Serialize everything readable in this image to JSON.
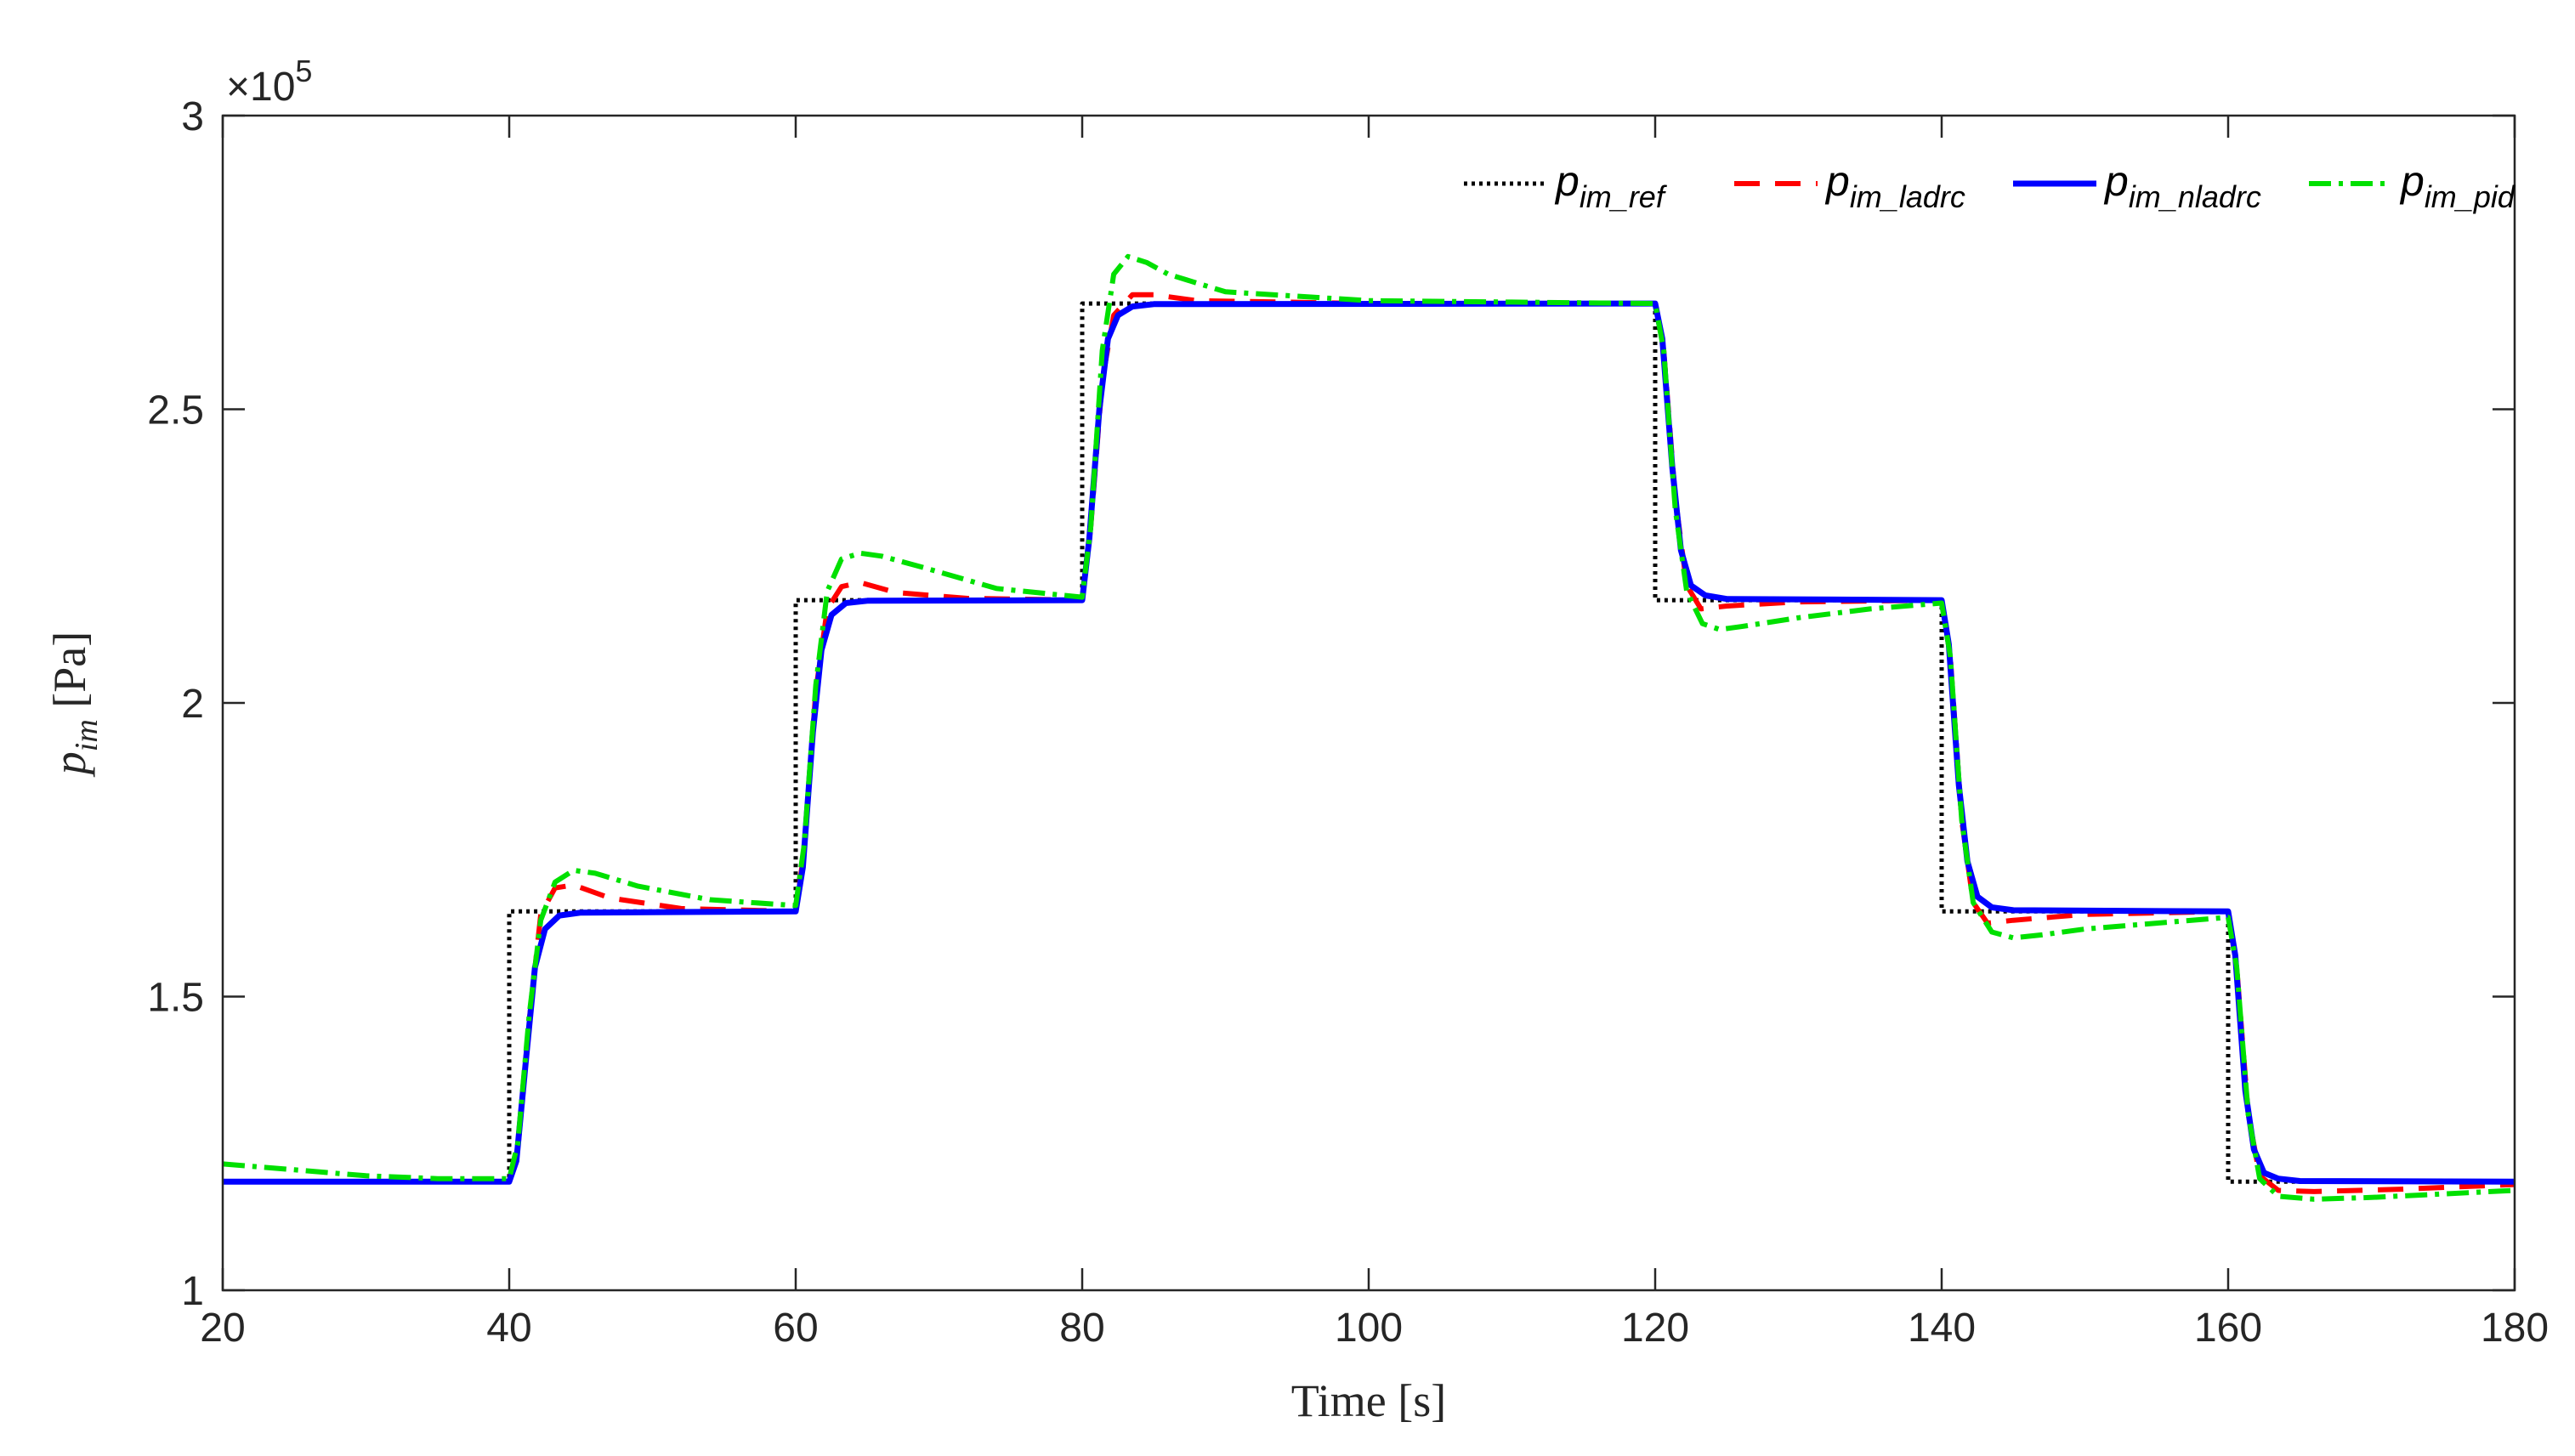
{
  "chart_data": {
    "type": "line",
    "xlabel": "Time [s]",
    "ylabel": {
      "main": "p",
      "sub": "im",
      "unit": " [Pa]"
    },
    "xlim": [
      20,
      180
    ],
    "ylim": [
      1.0,
      3.0
    ],
    "y_multiplier_label": "×10",
    "y_multiplier_exp": "5",
    "xticks": [
      20,
      40,
      60,
      80,
      100,
      120,
      140,
      160,
      180
    ],
    "yticks": [
      1,
      1.5,
      2,
      2.5,
      3
    ],
    "ytick_labels": [
      "1",
      "1.5",
      "2",
      "2.5",
      "3"
    ],
    "grid": false,
    "legend_position": "top-right",
    "legend": [
      {
        "main": "p",
        "sub": "im_ref"
      },
      {
        "main": "p",
        "sub": "im_ladrc"
      },
      {
        "main": "p",
        "sub": "im_nladrc"
      },
      {
        "main": "p",
        "sub": "im_pid"
      }
    ],
    "series": [
      {
        "legend_index": 0,
        "color": "#000000",
        "dash": "4 5",
        "width": 5,
        "points": [
          [
            20,
            1.185
          ],
          [
            40,
            1.185
          ],
          [
            40,
            1.645
          ],
          [
            60,
            1.645
          ],
          [
            60,
            2.175
          ],
          [
            80,
            2.175
          ],
          [
            80,
            2.68
          ],
          [
            120,
            2.68
          ],
          [
            120,
            2.175
          ],
          [
            140,
            2.175
          ],
          [
            140,
            1.645
          ],
          [
            160,
            1.645
          ],
          [
            160,
            1.185
          ],
          [
            180,
            1.185
          ]
        ]
      },
      {
        "legend_index": 1,
        "color": "#ff0000",
        "dash": "30 18",
        "width": 6,
        "points": [
          [
            20,
            1.185
          ],
          [
            40,
            1.185
          ],
          [
            40.6,
            1.24
          ],
          [
            41.4,
            1.46
          ],
          [
            42.2,
            1.64
          ],
          [
            43.2,
            1.685
          ],
          [
            44.5,
            1.69
          ],
          [
            47,
            1.668
          ],
          [
            52,
            1.65
          ],
          [
            60,
            1.645
          ],
          [
            60.6,
            1.75
          ],
          [
            61.4,
            2.02
          ],
          [
            62.2,
            2.16
          ],
          [
            63.2,
            2.198
          ],
          [
            64.5,
            2.205
          ],
          [
            67,
            2.188
          ],
          [
            72,
            2.178
          ],
          [
            80,
            2.175
          ],
          [
            80.6,
            2.3
          ],
          [
            81.4,
            2.55
          ],
          [
            82.2,
            2.66
          ],
          [
            83.5,
            2.695
          ],
          [
            85,
            2.695
          ],
          [
            88,
            2.685
          ],
          [
            100,
            2.68
          ],
          [
            120,
            2.68
          ],
          [
            120.6,
            2.6
          ],
          [
            121.4,
            2.35
          ],
          [
            122.2,
            2.2
          ],
          [
            123.2,
            2.16
          ],
          [
            125,
            2.165
          ],
          [
            130,
            2.172
          ],
          [
            140,
            2.175
          ],
          [
            140.6,
            2.08
          ],
          [
            141.4,
            1.8
          ],
          [
            142.2,
            1.66
          ],
          [
            143.2,
            1.625
          ],
          [
            145,
            1.63
          ],
          [
            150,
            1.64
          ],
          [
            160,
            1.645
          ],
          [
            160.6,
            1.55
          ],
          [
            161.4,
            1.3
          ],
          [
            162.2,
            1.195
          ],
          [
            163.5,
            1.17
          ],
          [
            166,
            1.168
          ],
          [
            172,
            1.172
          ],
          [
            180,
            1.18
          ]
        ]
      },
      {
        "legend_index": 2,
        "color": "#0000ff",
        "dash": "",
        "width": 7,
        "points": [
          [
            20,
            1.185
          ],
          [
            40,
            1.185
          ],
          [
            40.5,
            1.22
          ],
          [
            41.2,
            1.4
          ],
          [
            41.8,
            1.55
          ],
          [
            42.5,
            1.615
          ],
          [
            43.5,
            1.638
          ],
          [
            45,
            1.643
          ],
          [
            60,
            1.645
          ],
          [
            60.5,
            1.72
          ],
          [
            61.2,
            1.95
          ],
          [
            61.8,
            2.09
          ],
          [
            62.5,
            2.15
          ],
          [
            63.5,
            2.17
          ],
          [
            65,
            2.174
          ],
          [
            80,
            2.175
          ],
          [
            80.5,
            2.28
          ],
          [
            81.2,
            2.5
          ],
          [
            81.8,
            2.62
          ],
          [
            82.5,
            2.66
          ],
          [
            83.5,
            2.675
          ],
          [
            85,
            2.679
          ],
          [
            120,
            2.68
          ],
          [
            120.5,
            2.62
          ],
          [
            121.2,
            2.4
          ],
          [
            121.8,
            2.26
          ],
          [
            122.5,
            2.2
          ],
          [
            123.5,
            2.183
          ],
          [
            125,
            2.177
          ],
          [
            140,
            2.175
          ],
          [
            140.5,
            2.1
          ],
          [
            141.2,
            1.86
          ],
          [
            141.8,
            1.73
          ],
          [
            142.5,
            1.67
          ],
          [
            143.5,
            1.652
          ],
          [
            145,
            1.647
          ],
          [
            160,
            1.645
          ],
          [
            160.5,
            1.57
          ],
          [
            161.2,
            1.34
          ],
          [
            161.8,
            1.24
          ],
          [
            162.5,
            1.2
          ],
          [
            163.5,
            1.19
          ],
          [
            165,
            1.186
          ],
          [
            180,
            1.185
          ]
        ]
      },
      {
        "legend_index": 3,
        "color": "#00e000",
        "dash": "26 9 5 9",
        "width": 6,
        "points": [
          [
            20,
            1.215
          ],
          [
            25,
            1.205
          ],
          [
            30,
            1.195
          ],
          [
            35,
            1.19
          ],
          [
            40,
            1.19
          ],
          [
            40.6,
            1.25
          ],
          [
            41.4,
            1.47
          ],
          [
            42.2,
            1.63
          ],
          [
            43.2,
            1.695
          ],
          [
            44.5,
            1.715
          ],
          [
            46,
            1.71
          ],
          [
            49,
            1.688
          ],
          [
            54,
            1.665
          ],
          [
            60,
            1.655
          ],
          [
            60.6,
            1.76
          ],
          [
            61.4,
            2.03
          ],
          [
            62.2,
            2.19
          ],
          [
            63.2,
            2.245
          ],
          [
            64.5,
            2.255
          ],
          [
            66,
            2.25
          ],
          [
            69,
            2.23
          ],
          [
            74,
            2.195
          ],
          [
            80,
            2.18
          ],
          [
            80.6,
            2.3
          ],
          [
            81.4,
            2.6
          ],
          [
            82.2,
            2.73
          ],
          [
            83.2,
            2.76
          ],
          [
            84.5,
            2.75
          ],
          [
            86,
            2.73
          ],
          [
            90,
            2.7
          ],
          [
            100,
            2.685
          ],
          [
            120,
            2.68
          ],
          [
            120.6,
            2.6
          ],
          [
            121.4,
            2.33
          ],
          [
            122.2,
            2.19
          ],
          [
            123.3,
            2.135
          ],
          [
            124.5,
            2.125
          ],
          [
            126,
            2.13
          ],
          [
            130,
            2.145
          ],
          [
            135,
            2.16
          ],
          [
            140,
            2.17
          ],
          [
            140.6,
            2.08
          ],
          [
            141.4,
            1.8
          ],
          [
            142.2,
            1.66
          ],
          [
            143.5,
            1.61
          ],
          [
            145,
            1.6
          ],
          [
            147,
            1.605
          ],
          [
            150,
            1.615
          ],
          [
            155,
            1.625
          ],
          [
            160,
            1.635
          ],
          [
            160.6,
            1.55
          ],
          [
            161.4,
            1.3
          ],
          [
            162.2,
            1.19
          ],
          [
            163.5,
            1.16
          ],
          [
            166,
            1.155
          ],
          [
            170,
            1.158
          ],
          [
            175,
            1.164
          ],
          [
            180,
            1.17
          ]
        ]
      }
    ]
  }
}
